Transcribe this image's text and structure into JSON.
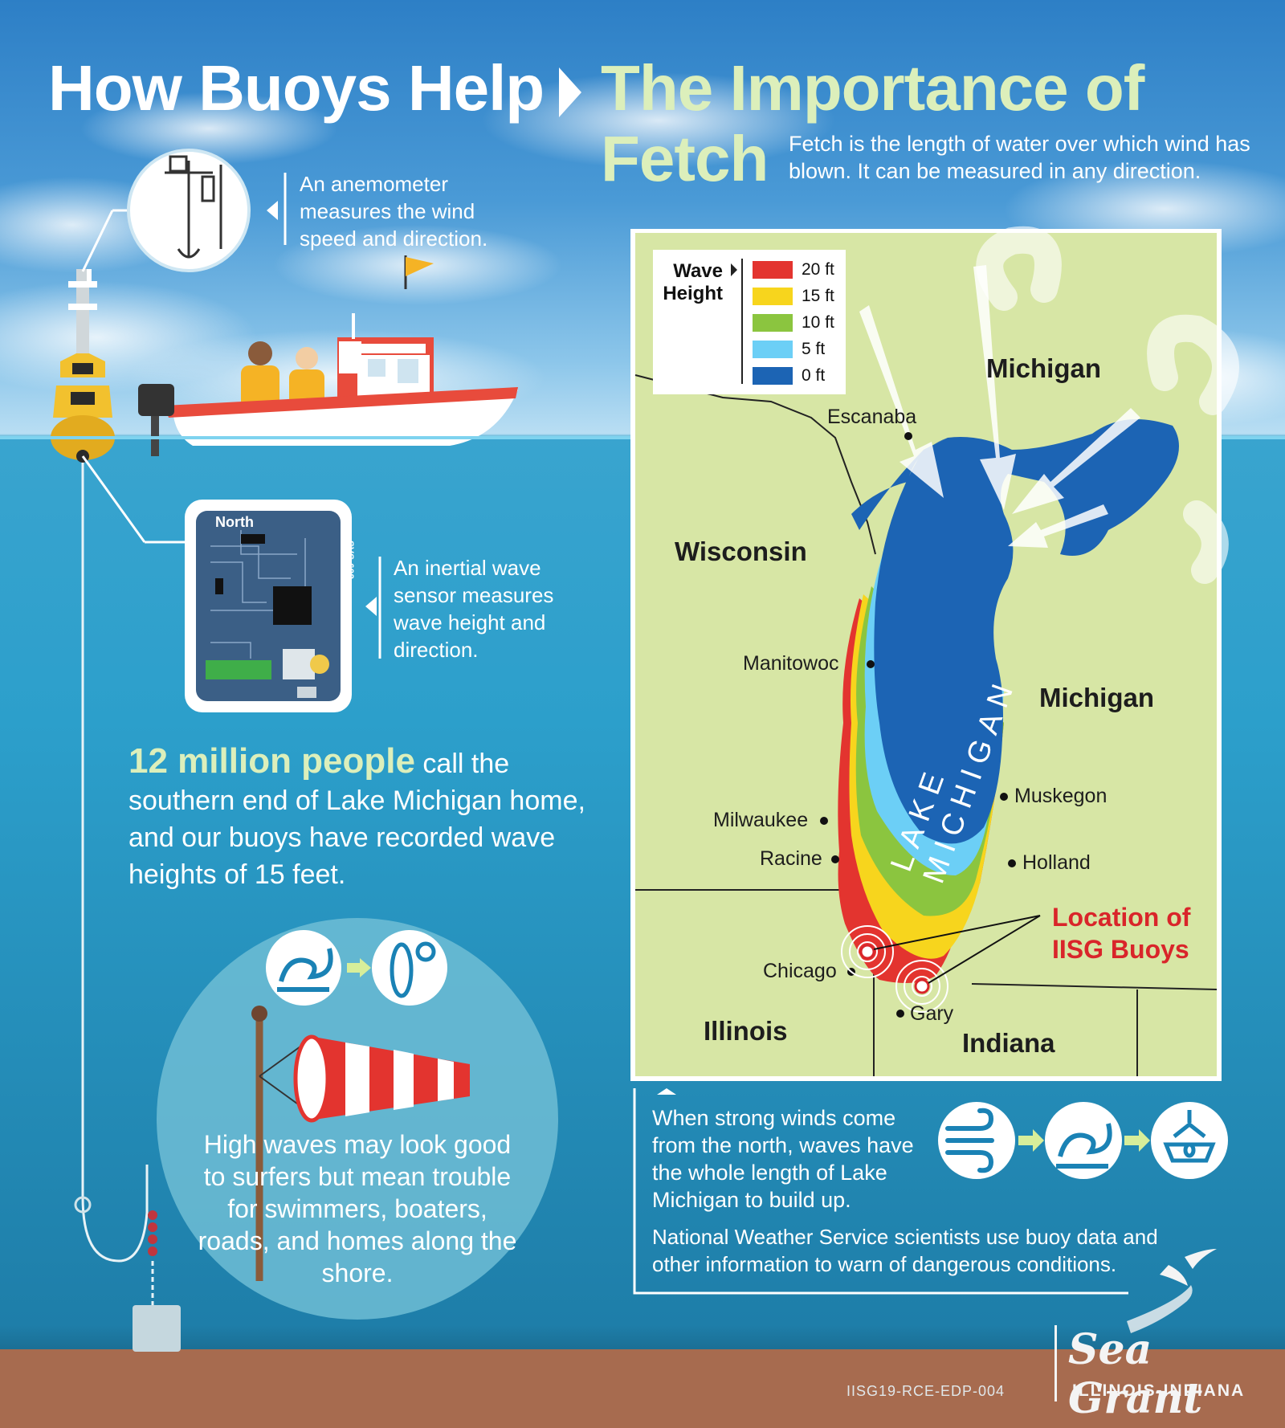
{
  "header": {
    "title_left": "How Buoys Help",
    "title_right_line1": "The Importance of",
    "title_right_line2": "Fetch",
    "fetch_description": "Fetch is the length of water over which wind has blown. It can be measured in any direction."
  },
  "buoy": {
    "anemometer_caption": "An anemometer measures the wind speed and direction.",
    "sensor_caption": "An inertial wave sensor measures wave height and direction.",
    "sensor_board_label": "North",
    "sensor_board_code": "SVS-603"
  },
  "stats": {
    "highlight": "12 million people",
    "rest": "call the southern end of Lake Michigan home, and our buoys have recorded wave heights of 15 feet."
  },
  "trouble_text": "High waves may look good to surfers but mean trouble for swimmers, boaters, roads, and homes along the shore.",
  "map": {
    "legend_title_1": "Wave",
    "legend_title_2": "Height",
    "legend": [
      {
        "label": "20 ft",
        "color": "#e3342f"
      },
      {
        "label": "15 ft",
        "color": "#f7d51d"
      },
      {
        "label": "10 ft",
        "color": "#8bc53f"
      },
      {
        "label": "5 ft",
        "color": "#6ccff6"
      },
      {
        "label": "0 ft",
        "color": "#1c64b4"
      }
    ],
    "states": {
      "michigan_upper": "Michigan",
      "michigan_lower": "Michigan",
      "wisconsin": "Wisconsin",
      "illinois": "Illinois",
      "indiana": "Indiana"
    },
    "lake_label": "LAKE MICHIGAN",
    "cities": {
      "escanaba": "Escanaba",
      "manitowoc": "Manitowoc",
      "milwaukee": "Milwaukee",
      "racine": "Racine",
      "chicago": "Chicago",
      "gary": "Gary",
      "muskegon": "Muskegon",
      "holland": "Holland"
    },
    "buoy_location_label": "Location of IISG Buoys"
  },
  "footer": {
    "north_wind_text": "When strong winds come from the north, waves have the whole length of Lake Michigan to build up.",
    "nws_text": "National Weather Service scientists use buoy data and other information to warn of dangerous conditions.",
    "doc_code": "IISG19-RCE-EDP-004",
    "logo_main": "Sea Grant",
    "logo_sub": "ILLINOIS-INDIANA"
  },
  "colors": {
    "sky_top": "#2d7fc6",
    "water": "#2c9fcb",
    "title_green": "#dcefbb",
    "map_land": "#d7e6a5",
    "buoy_yellow": "#f2c12e",
    "highlight_red": "#d9252a"
  },
  "icons": {
    "wave": "wave-icon",
    "surfboard": "surfboard-icon",
    "wind": "wind-icon",
    "buoy": "buoy-icon",
    "windsock": "windsock-icon"
  }
}
